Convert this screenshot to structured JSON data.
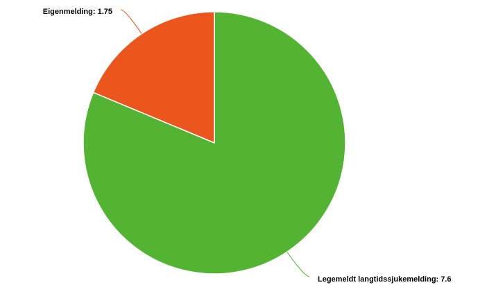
{
  "chart_data": {
    "type": "pie",
    "title": "",
    "slices": [
      {
        "label": "Legemeldt langtidssjukemelding",
        "value": 7.6,
        "color": "#53b434",
        "data_label": "Legemeldt langtidssjukemelding: 7.6"
      },
      {
        "label": "Eigenmelding",
        "value": 1.75,
        "color": "#ea561d",
        "data_label": "Eigenmelding: 1.75"
      }
    ],
    "legend": "none",
    "start_angle": "12 o'clock",
    "direction": "clockwise"
  }
}
